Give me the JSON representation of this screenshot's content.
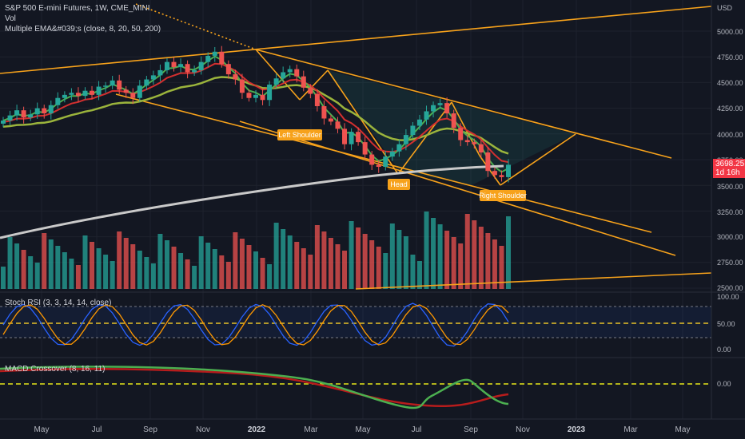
{
  "header": {
    "symbol_line": "S&P 500 E-mini Futures, 1W, CME_MINI",
    "vol_label": "Vol",
    "ema_label": "Multiple EMA&#039;s (close, 8, 20, 50, 200)"
  },
  "price_axis": {
    "currency": "USD",
    "ticks": [
      "5000.00",
      "4750.00",
      "4500.00",
      "4250.00",
      "4000.00",
      "3750.00",
      "3500.00",
      "3250.00",
      "3000.00",
      "2750.00",
      "2500.00"
    ]
  },
  "last_price": {
    "value": "3698.25",
    "countdown": "1d 16h"
  },
  "annotations": {
    "left_shoulder": "Left Shoulder",
    "head": "Head",
    "right_shoulder": "Right Shoulder"
  },
  "stoch_rsi": {
    "label": "Stoch RSI (3, 3, 14, 14, close)",
    "ticks": [
      "100.00",
      "50.00",
      "0.00"
    ]
  },
  "macd": {
    "label": "MACD Crossover (8, 16, 11)",
    "ticks": [
      "0.00"
    ]
  },
  "time_axis": {
    "labels": [
      "May",
      "Jul",
      "Sep",
      "Nov",
      "2022",
      "Mar",
      "May",
      "Jul",
      "Sep",
      "Nov",
      "2023",
      "Mar",
      "May"
    ],
    "bold": [
      "2022",
      "2023"
    ]
  },
  "colors": {
    "background": "#131722",
    "up": "#26a69a",
    "down": "#ef5350",
    "trendline": "#f7a21b",
    "ema8": "#4caf50",
    "ema20": "#d32f2f",
    "ema50": "#9bb43c",
    "ema200": "#c9c9c9",
    "stoch_k": "#2962ff",
    "stoch_d": "#ff9800",
    "macd_fast": "#4caf50",
    "macd_slow": "#b71c1c"
  },
  "chart_data": {
    "type": "candlestick",
    "interval": "1W",
    "ylim": [
      2500,
      5000
    ],
    "approx_closes": [
      4130,
      4180,
      4230,
      4160,
      4190,
      4250,
      4200,
      4280,
      4350,
      4380,
      4400,
      4370,
      4420,
      4380,
      4460,
      4470,
      4520,
      4430,
      4400,
      4350,
      4470,
      4530,
      4570,
      4620,
      4700,
      4650,
      4680,
      4600,
      4620,
      4700,
      4760,
      4800,
      4680,
      4580,
      4530,
      4400,
      4350,
      4380,
      4330,
      4480,
      4540,
      4600,
      4630,
      4560,
      4450,
      4390,
      4270,
      4150,
      4120,
      4050,
      3900,
      4020,
      3920,
      3800,
      3700,
      3680,
      3780,
      3830,
      3900,
      3990,
      4080,
      4140,
      4220,
      4280,
      4300,
      4200,
      4060,
      3940,
      3920,
      3900,
      3820,
      3640,
      3600,
      3580,
      3700
    ],
    "annotations": [
      "Left Shoulder",
      "Head",
      "Right Shoulder"
    ]
  }
}
